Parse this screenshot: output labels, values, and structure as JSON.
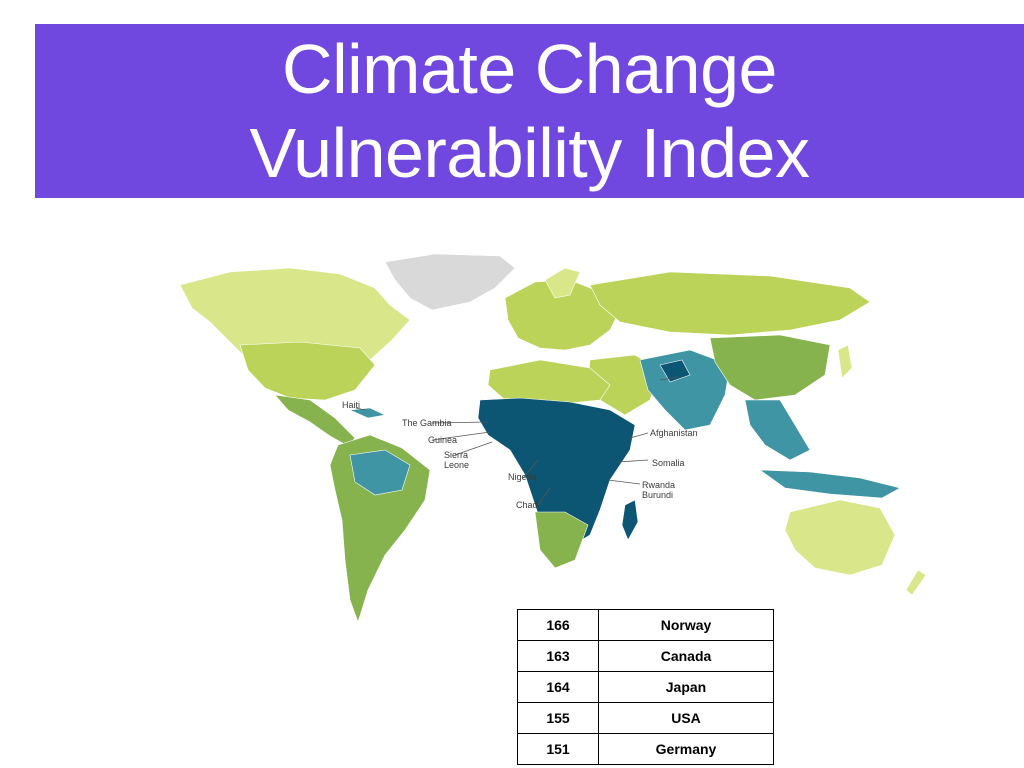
{
  "title": {
    "lines": [
      "Climate Change",
      "Vulnerability Index"
    ]
  },
  "colors": {
    "banner": "#7048e0",
    "least_vulnerable": "#d9e68a",
    "low": "#bcd35a",
    "medium": "#86b34d",
    "high": "#3f95a3",
    "extreme": "#0c5673",
    "no_data": "#d9d9d9"
  },
  "map": {
    "labels": {
      "haiti": "Haiti",
      "gambia": "The Gambia",
      "guinea": "Guinea",
      "sierra_leone_1": "Sierra",
      "sierra_leone_2": "Leone",
      "nigeria": "Nigeria",
      "chad": "Chad",
      "afghanistan": "Afghanistan",
      "somalia": "Somalia",
      "rwanda": "Rwanda",
      "burundi": "Burundi"
    }
  },
  "rankings": {
    "rows": [
      {
        "rank": "166",
        "country": "Norway"
      },
      {
        "rank": "163",
        "country": "Canada"
      },
      {
        "rank": "164",
        "country": "Japan"
      },
      {
        "rank": "155",
        "country": "USA"
      },
      {
        "rank": "151",
        "country": "Germany"
      }
    ]
  }
}
